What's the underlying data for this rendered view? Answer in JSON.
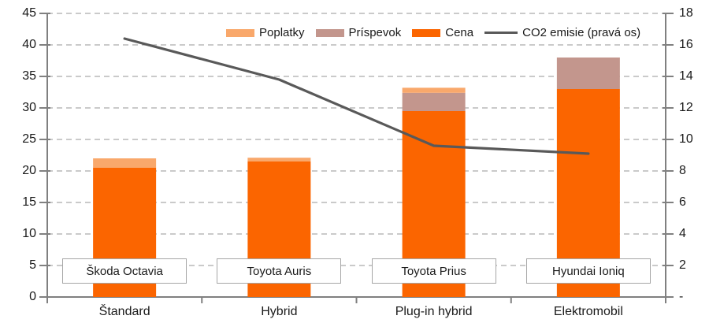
{
  "chart_data": {
    "type": "bar",
    "subtype": "stacked-bar-with-line-combo",
    "categories": [
      "Štandard",
      "Hybrid",
      "Plug-in hybrid",
      "Elektromobil"
    ],
    "model_labels": [
      "Škoda Octavia",
      "Toyota Auris",
      "Toyota Prius",
      "Hyundai Ioniq"
    ],
    "series": [
      {
        "name": "Cena",
        "type": "bar",
        "axis": "left",
        "color": "#FB6500",
        "values": [
          20.5,
          21.5,
          29.5,
          33.0
        ]
      },
      {
        "name": "Príspevok",
        "type": "bar",
        "axis": "left",
        "color": "#C3968D",
        "values": [
          0,
          0,
          2.9,
          5.0
        ]
      },
      {
        "name": "Poplatky",
        "type": "bar",
        "axis": "left",
        "color": "#F9A86B",
        "values": [
          1.5,
          0.6,
          0.8,
          0
        ]
      }
    ],
    "stack_order": "bottom-to-top: Cena, Príspevok, Poplatky",
    "line_series": {
      "name": "CO2 emisie (pravá os)",
      "type": "line",
      "axis": "right",
      "color": "#595959",
      "values": [
        16.4,
        13.8,
        9.6,
        9.1
      ]
    },
    "legend": [
      {
        "label": "Poplatky",
        "shape": "bar",
        "color": "#F9A86B"
      },
      {
        "label": "Príspevok",
        "shape": "bar",
        "color": "#C3968D"
      },
      {
        "label": "Cena",
        "shape": "bar",
        "color": "#FB6500"
      },
      {
        "label": "CO2 emisie (pravá os)",
        "shape": "line",
        "color": "#595959"
      }
    ],
    "legend_position": "top-inside",
    "left_axis": {
      "min": 0,
      "max": 45,
      "step": 5,
      "tick_labels": [
        "45",
        "40",
        "35",
        "30",
        "25",
        "20",
        "15",
        "10",
        "5",
        "0"
      ]
    },
    "right_axis": {
      "min": 0,
      "max": 18,
      "step": 2,
      "tick_labels": [
        "18",
        "16",
        "14",
        "12",
        "10",
        "8",
        "6",
        "4",
        "2",
        "-"
      ]
    },
    "grid": {
      "horizontal": true,
      "style": "dashed",
      "color": "#B9B9B9"
    },
    "axis_line_color": "#808080",
    "title": "",
    "xlabel": "",
    "ylabel": ""
  }
}
